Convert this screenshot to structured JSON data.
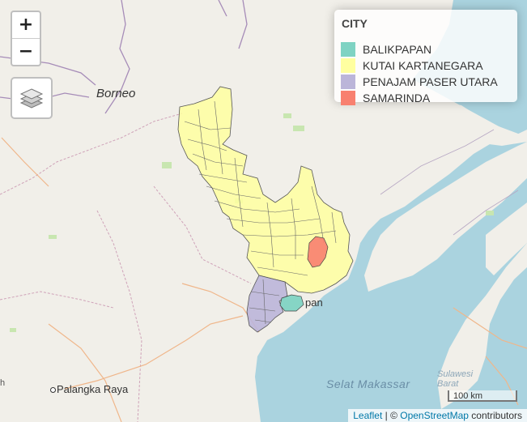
{
  "controls": {
    "zoom_in_label": "+",
    "zoom_out_label": "−",
    "layers_icon": "layers-icon"
  },
  "legend": {
    "title": "CITY",
    "items": [
      {
        "label": "BALIKPAPAN",
        "color": "#7fd3c3"
      },
      {
        "label": "KUTAI KARTANEGARA",
        "color": "#ffffa0"
      },
      {
        "label": "PENAJAM PASER UTARA",
        "color": "#bbb5d9"
      },
      {
        "label": "SAMARINDA",
        "color": "#f8806f"
      }
    ]
  },
  "map_labels": {
    "borneo": "Borneo",
    "palangka_raya": "Palangka Raya",
    "selat_makassar": "Selat Makassar",
    "sulawesi_line1": "Sulawesi",
    "sulawesi_line2": "Barat",
    "balikpapan_partial": "pan",
    "left_edge_partial": "h"
  },
  "scale": {
    "label": "100 km"
  },
  "attribution": {
    "leaflet": "Leaflet",
    "separator": " | © ",
    "osm": "OpenStreetMap",
    "suffix": " contributors"
  },
  "colors": {
    "sea": "#aad3df",
    "land": "#f1efe9",
    "border": "#a68cb8",
    "road": "#f0b68a"
  }
}
